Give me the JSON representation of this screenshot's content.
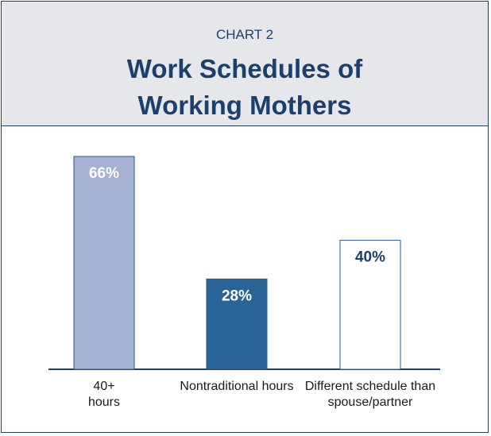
{
  "chart_data": {
    "type": "bar",
    "kicker": "CHART 2",
    "title": "Work Schedules of Working Mothers",
    "categories": [
      "40+ hours",
      "Nontraditional hours",
      "Different schedule than spouse/partner"
    ],
    "values": [
      66,
      28,
      40
    ],
    "value_labels": [
      "66%",
      "28%",
      "40%"
    ],
    "colors": [
      "#a3b2d3",
      "#2a6396",
      "#ffffff"
    ],
    "label_colors": [
      "#ffffff",
      "#ffffff",
      "#1d3f6c"
    ]
  }
}
